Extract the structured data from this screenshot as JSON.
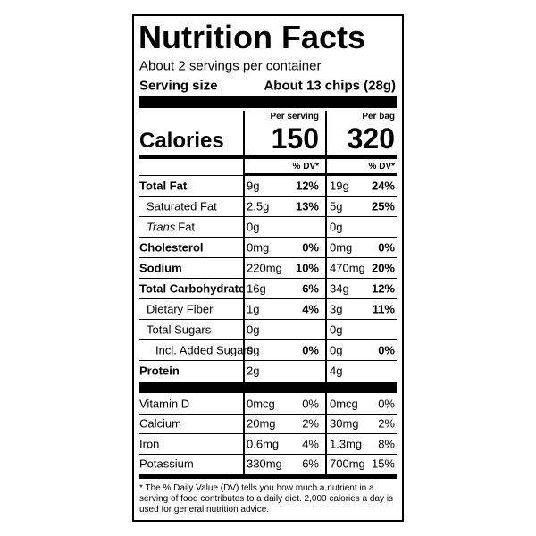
{
  "header": {
    "title": "Nutrition Facts",
    "servings": "About 2 servings per container",
    "serving_size_label": "Serving size",
    "serving_size_value": "About 13 chips (28g)"
  },
  "calories_label": "Calories",
  "columns": [
    {
      "heading": "Per serving",
      "calories": "150",
      "dv_label": "% DV*"
    },
    {
      "heading": "Per bag",
      "calories": "320",
      "dv_label": "% DV*"
    }
  ],
  "nutrients": [
    {
      "name": "Total Fat",
      "cells": [
        "9g",
        "12%",
        "19g",
        "24%"
      ]
    },
    {
      "name": "Saturated Fat",
      "cells": [
        "2.5g",
        "13%",
        "5g",
        "25%"
      ]
    },
    {
      "name_italic": "Trans",
      "name": "Fat",
      "cells": [
        "0g",
        null,
        "0g",
        null
      ]
    },
    {
      "name": "Cholesterol",
      "cells": [
        "0mg",
        "0%",
        "0mg",
        "0%"
      ]
    },
    {
      "name": "Sodium",
      "cells": [
        "220mg",
        "10%",
        "470mg",
        "20%"
      ]
    },
    {
      "name": "Total Carbohydrate",
      "cells": [
        "16g",
        "6%",
        "34g",
        "12%"
      ]
    },
    {
      "name": "Dietary Fiber",
      "cells": [
        "1g",
        "4%",
        "3g",
        "11%"
      ]
    },
    {
      "name": "Total Sugars",
      "cells": [
        "0g",
        null,
        "0g",
        null
      ]
    },
    {
      "name": "Incl. Added Sugars",
      "cells": [
        "0g",
        "0%",
        "0g",
        "0%"
      ]
    },
    {
      "name": "Protein",
      "cells": [
        "2g",
        null,
        "4g",
        null
      ]
    }
  ],
  "vitamins": [
    {
      "name": "Vitamin D",
      "cells": [
        "0mcg",
        "0%",
        "0mcg",
        "0%"
      ]
    },
    {
      "name": "Calcium",
      "cells": [
        "20mg",
        "2%",
        "30mg",
        "2%"
      ]
    },
    {
      "name": "Iron",
      "cells": [
        "0.6mg",
        "4%",
        "1.3mg",
        "8%"
      ]
    },
    {
      "name": "Potassium",
      "cells": [
        "330mg",
        "6%",
        "700mg",
        "15%"
      ]
    }
  ],
  "footnote": "* The % Daily Value (DV) tells you how much a nutrient in a serving of food contributes to a daily diet. 2,000 calories a day is used for general nutrition advice."
}
